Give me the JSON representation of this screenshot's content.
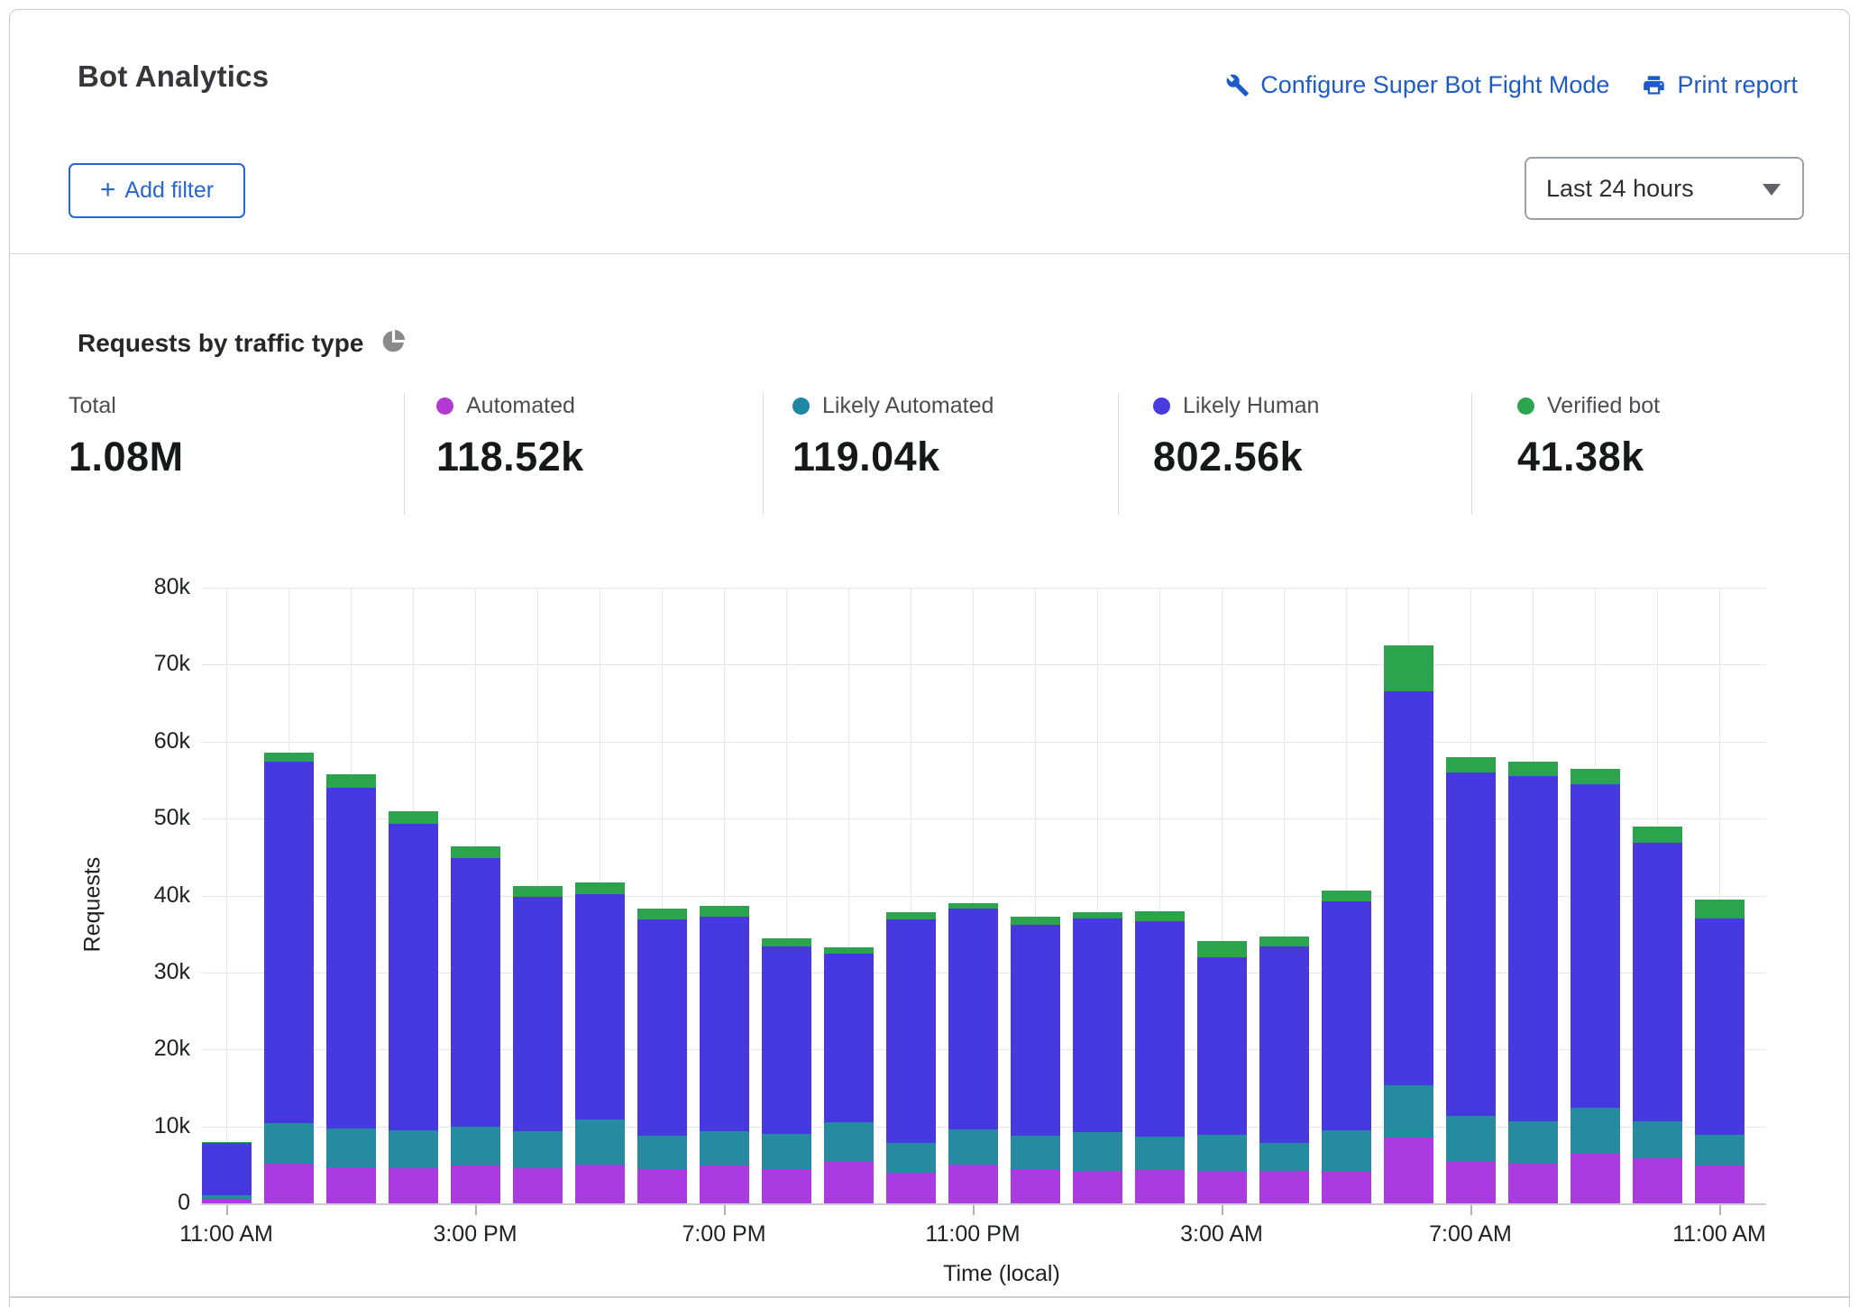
{
  "header": {
    "title": "Bot Analytics",
    "configure_link": "Configure Super Bot Fight Mode",
    "print_link": "Print report",
    "add_filter_label": "Add filter",
    "add_filter_plus": "+",
    "time_range_value": "Last 24 hours",
    "link_color": "#1d5cc8"
  },
  "section": {
    "title": "Requests by traffic type",
    "pie_icon_color": "#8a8a8a"
  },
  "stats": [
    {
      "label": "Total",
      "value": "1.08M",
      "dot_color": null
    },
    {
      "label": "Automated",
      "value": "118.52k",
      "dot_color": "#b339d3"
    },
    {
      "label": "Likely Automated",
      "value": "119.04k",
      "dot_color": "#1f87a4"
    },
    {
      "label": "Likely Human",
      "value": "802.56k",
      "dot_color": "#4a3be0"
    },
    {
      "label": "Verified bot",
      "value": "41.38k",
      "dot_color": "#2da44e"
    }
  ],
  "chart_data": {
    "type": "bar",
    "stacked": true,
    "title": "Requests by traffic type",
    "xlabel": "Time (local)",
    "ylabel": "Requests",
    "ylim": [
      0,
      80000
    ],
    "grid": true,
    "unit": "thousands of requests per hour",
    "ytick_labels": [
      "0",
      "10k",
      "20k",
      "30k",
      "40k",
      "50k",
      "60k",
      "70k",
      "80k"
    ],
    "x_tick_labels": [
      "11:00 AM",
      "3:00 PM",
      "7:00 PM",
      "11:00 PM",
      "3:00 AM",
      "7:00 AM",
      "11:00 AM"
    ],
    "x_tick_indices": [
      0,
      4,
      8,
      12,
      16,
      20,
      24
    ],
    "categories": [
      "11:00 AM",
      "12:00 PM",
      "1:00 PM",
      "2:00 PM",
      "3:00 PM",
      "4:00 PM",
      "5:00 PM",
      "6:00 PM",
      "7:00 PM",
      "8:00 PM",
      "9:00 PM",
      "10:00 PM",
      "11:00 PM",
      "12:00 AM",
      "1:00 AM",
      "2:00 AM",
      "3:00 AM",
      "4:00 AM",
      "5:00 AM",
      "6:00 AM",
      "7:00 AM",
      "8:00 AM",
      "9:00 AM",
      "10:00 AM",
      "11:00 AM"
    ],
    "series": [
      {
        "name": "Automated",
        "color": "#a93be0",
        "values": [
          0.6,
          5.2,
          4.7,
          4.6,
          4.9,
          4.6,
          5.0,
          4.4,
          4.9,
          4.4,
          5.5,
          4.0,
          5.0,
          4.5,
          4.2,
          4.3,
          4.2,
          4.2,
          4.1,
          8.5,
          5.5,
          5.1,
          6.4,
          5.8,
          4.9
        ]
      },
      {
        "name": "Likely Automated",
        "color": "#268ba1",
        "values": [
          0.5,
          5.2,
          5.0,
          4.9,
          5.0,
          4.8,
          5.9,
          4.4,
          4.5,
          4.6,
          5.1,
          3.9,
          4.6,
          4.3,
          5.1,
          4.4,
          4.7,
          3.6,
          5.4,
          6.8,
          5.9,
          5.6,
          6.0,
          4.9,
          4.0
        ]
      },
      {
        "name": "Likely Human",
        "color": "#4639df",
        "values": [
          6.7,
          47.0,
          44.3,
          39.8,
          35.0,
          30.4,
          29.3,
          28.1,
          27.9,
          24.4,
          21.9,
          29.0,
          28.7,
          27.4,
          27.7,
          28.0,
          23.1,
          25.6,
          29.7,
          51.2,
          44.6,
          44.8,
          42.1,
          36.2,
          28.1
        ]
      },
      {
        "name": "Verified bot",
        "color": "#2ca44d",
        "values": [
          0.2,
          1.2,
          1.7,
          1.7,
          1.5,
          1.4,
          1.5,
          1.4,
          1.4,
          1.0,
          0.8,
          0.9,
          0.7,
          1.0,
          0.8,
          1.3,
          2.1,
          1.3,
          1.4,
          6.0,
          2.0,
          1.9,
          2.0,
          2.1,
          2.5
        ]
      }
    ]
  }
}
